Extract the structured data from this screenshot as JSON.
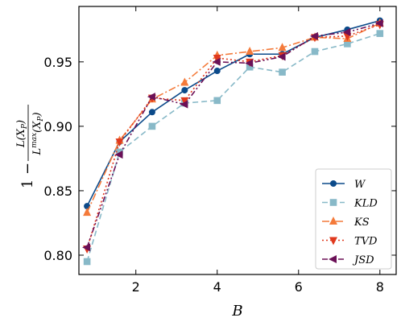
{
  "chart_data": {
    "type": "line",
    "xlabel": "B",
    "ylabel": {
      "prefix": "1 −",
      "numerator": "L(X",
      "numerator_sub": "P",
      "numerator_close": ")",
      "denominator": "L",
      "denominator_sup": "max",
      "denominator_rest": "(X",
      "denominator_sub": "P",
      "denominator_close": ")"
    },
    "xlim": [
      0.6,
      8.4
    ],
    "ylim": [
      0.785,
      0.993
    ],
    "xticks": [
      2,
      4,
      6,
      8
    ],
    "xtick_labels": [
      "2",
      "4",
      "6",
      "8"
    ],
    "yticks": [
      0.8,
      0.85,
      0.9,
      0.95
    ],
    "ytick_labels": [
      "0.80",
      "0.85",
      "0.90",
      "0.95"
    ],
    "grid": false,
    "legend_position": "lower-right",
    "x": [
      0.8,
      1.6,
      2.4,
      3.2,
      4.0,
      4.8,
      5.6,
      6.4,
      7.2,
      8.0
    ],
    "series": [
      {
        "name": "W",
        "color": "#0b4a8a",
        "marker": "circle",
        "dash": "solid",
        "values": [
          0.838,
          0.888,
          0.911,
          0.928,
          0.943,
          0.956,
          0.956,
          0.969,
          0.975,
          0.982
        ]
      },
      {
        "name": "KLD",
        "color": "#88b9c8",
        "marker": "square",
        "dash": "dashed",
        "values": [
          0.795,
          0.88,
          0.9,
          0.918,
          0.92,
          0.946,
          0.942,
          0.958,
          0.964,
          0.972
        ]
      },
      {
        "name": "KS",
        "color": "#f47a3a",
        "marker": "triangle-up",
        "dash": "dashdot",
        "values": [
          0.833,
          0.889,
          0.921,
          0.934,
          0.955,
          0.958,
          0.961,
          0.969,
          0.968,
          0.98
        ]
      },
      {
        "name": "TVD",
        "color": "#e0391e",
        "marker": "triangle-down",
        "dash": "dotted",
        "values": [
          0.805,
          0.888,
          0.922,
          0.92,
          0.953,
          0.95,
          0.955,
          0.969,
          0.97,
          0.979
        ]
      },
      {
        "name": "JSD",
        "color": "#6b1057",
        "marker": "triangle-left",
        "dash": "dashdotdot",
        "values": [
          0.806,
          0.878,
          0.923,
          0.917,
          0.95,
          0.949,
          0.954,
          0.97,
          0.973,
          0.98
        ]
      }
    ]
  }
}
